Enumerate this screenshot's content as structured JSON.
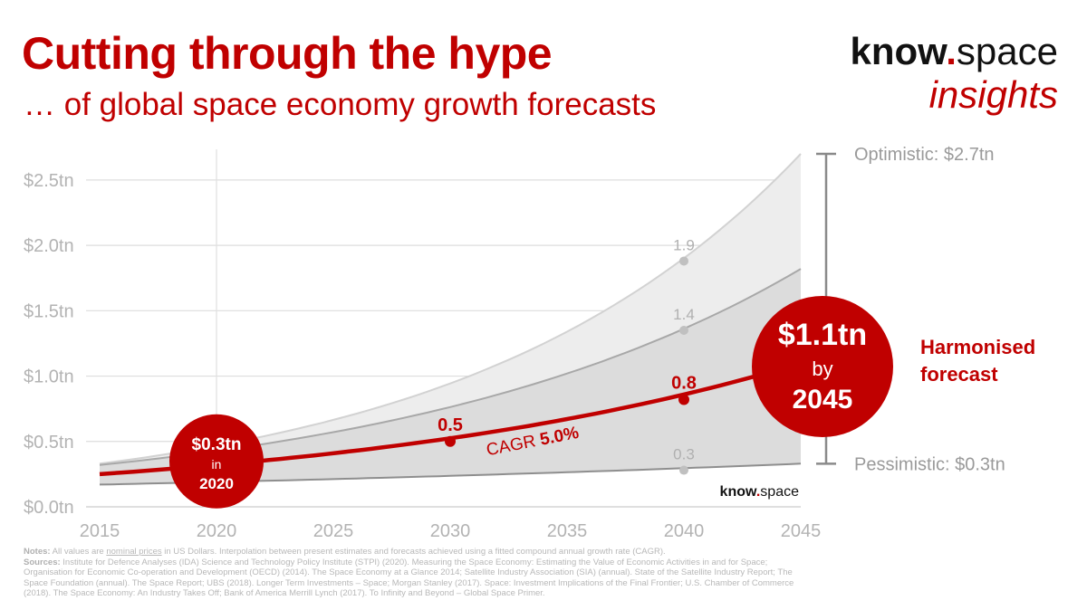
{
  "header": {
    "title": "Cutting through the hype",
    "subtitle": "… of global space economy growth forecasts"
  },
  "brand": {
    "name_bold": "know",
    "dot": ".",
    "name_light": "space",
    "tagline": "insights",
    "watermark_bold": "know",
    "watermark_dot": ".",
    "watermark_light": "space"
  },
  "colors": {
    "accent": "#c00000",
    "optimistic_fill": "#ededed",
    "central_fill": "#dcdcdc",
    "grid": "#dddddd",
    "axis_text": "#b3b3b3"
  },
  "chart_data": {
    "type": "area",
    "x_range": [
      2015,
      2045
    ],
    "ylim": [
      0,
      2.7
    ],
    "y_ticks": [
      {
        "value": 0.0,
        "label": "$0.0tn"
      },
      {
        "value": 0.5,
        "label": "$0.5tn"
      },
      {
        "value": 1.0,
        "label": "$1.0tn"
      },
      {
        "value": 1.5,
        "label": "$1.5tn"
      },
      {
        "value": 2.0,
        "label": "$2.0tn"
      },
      {
        "value": 2.5,
        "label": "$2.5tn"
      }
    ],
    "x_ticks": [
      "2015",
      "2020",
      "2025",
      "2030",
      "2035",
      "2040",
      "2045"
    ],
    "series": [
      {
        "key": "optimistic",
        "start": 0.33,
        "end": 2.7
      },
      {
        "key": "upper_central",
        "start": 0.32,
        "end": 1.82
      },
      {
        "key": "pessimistic",
        "start": 0.17,
        "end": 0.33
      },
      {
        "key": "harmonised",
        "start": 0.25,
        "end": 1.1
      }
    ],
    "data_labels": [
      {
        "x": 2040,
        "y": 1.88,
        "label": "1.9",
        "series": "optimistic"
      },
      {
        "x": 2040,
        "y": 1.35,
        "label": "1.4",
        "series": "upper_central"
      },
      {
        "x": 2040,
        "y": 0.28,
        "label": "0.3",
        "series": "pessimistic"
      },
      {
        "x": 2030,
        "y": 0.5,
        "label": "0.5",
        "series": "harmonised"
      },
      {
        "x": 2040,
        "y": 0.82,
        "label": "0.8",
        "series": "harmonised"
      }
    ],
    "cagr": {
      "prefix": "CAGR ",
      "value": "5.0%"
    },
    "start_callout": {
      "value": "$0.3tn",
      "word": "in",
      "year": "2020"
    },
    "end_callout": {
      "value": "$1.1tn",
      "word": "by",
      "year": "2045"
    },
    "harmonised_label": [
      "Harmonised",
      "forecast"
    ],
    "range": {
      "optimistic_label": "Optimistic: $2.7tn",
      "pessimistic_label": "Pessimistic: $0.3tn"
    }
  },
  "notes": {
    "notes_label": "Notes:",
    "notes_pre": " All values are ",
    "notes_underlined": "nominal prices",
    "notes_post": " in US Dollars. Interpolation between present estimates and forecasts achieved using a fitted compound annual growth rate (CAGR).",
    "sources_label": "Sources:",
    "sources_text": " Institute for Defence Analyses (IDA) Science and Technology Policy Institute (STPI) (2020). Measuring the Space Economy: Estimating the Value of Economic Activities in and for Space; Organisation for Economic Co-operation and Development (OECD) (2014). The Space Economy at a Glance 2014; Satellite Industry Association (SIA) (annual). State of the Satellite Industry Report; The Space Foundation (annual). The Space Report; UBS (2018). Longer Term Investments – Space; Morgan Stanley (2017). Space: Investment Implications of the Final Frontier; U.S. Chamber of Commerce (2018). The Space Economy: An Industry Takes Off; Bank of America Merrill Lynch (2017). To Infinity and Beyond – Global Space Primer."
  }
}
